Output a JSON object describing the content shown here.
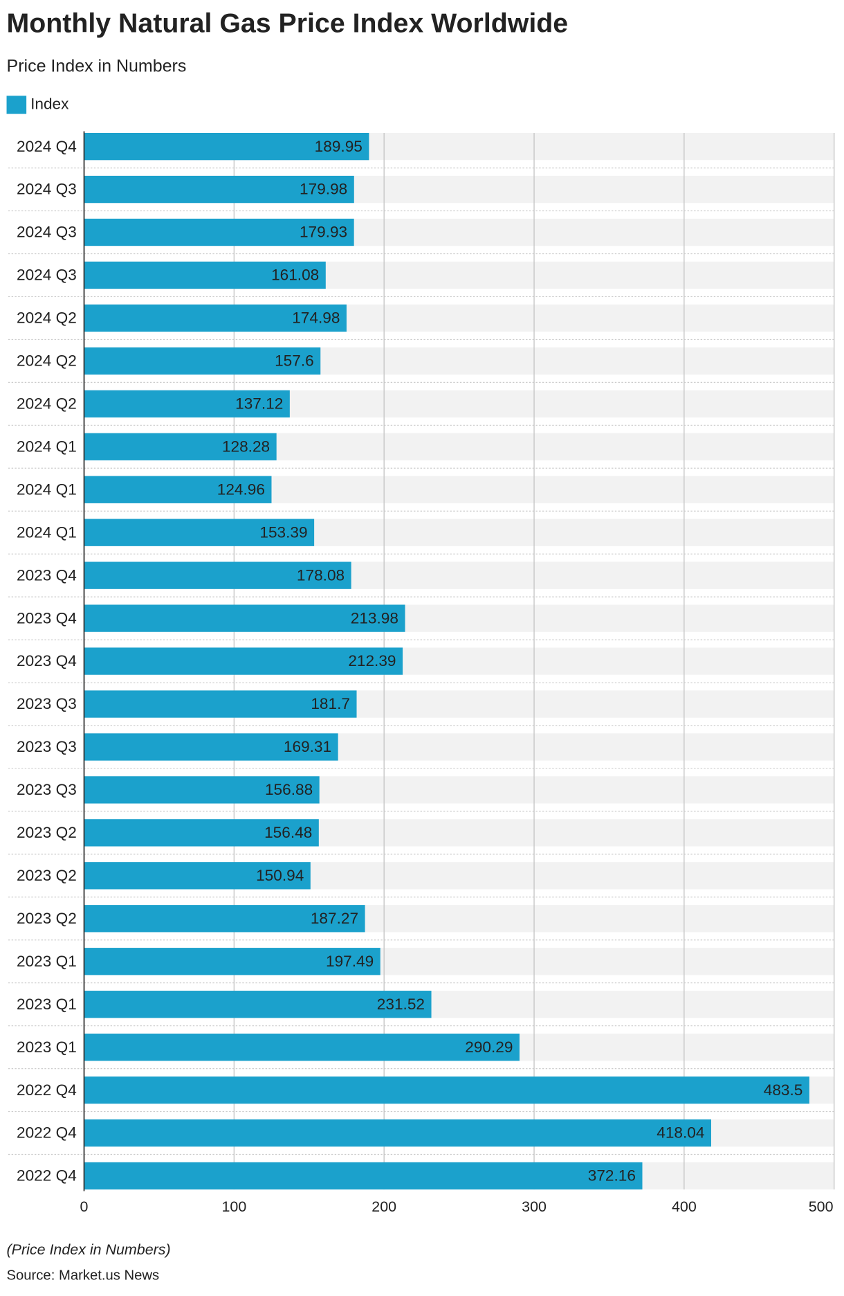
{
  "chart_data": {
    "type": "hbar",
    "title": "Monthly Natural Gas Price Index Worldwide",
    "subtitle": "Price Index in Numbers",
    "categories": [
      "2024 Q4",
      "2024 Q3",
      "2024 Q3",
      "2024 Q3",
      "2024 Q2",
      "2024 Q2",
      "2024 Q2",
      "2024 Q1",
      "2024 Q1",
      "2024 Q1",
      "2023 Q4",
      "2023 Q4",
      "2023 Q4",
      "2023 Q3",
      "2023 Q3",
      "2023 Q3",
      "2023 Q2",
      "2023 Q2",
      "2023 Q2",
      "2023 Q1",
      "2023 Q1",
      "2023 Q1",
      "2022 Q4",
      "2022 Q4",
      "2022 Q4"
    ],
    "series": [
      {
        "name": "Index",
        "color": "#1ba1cc",
        "values": [
          189.95,
          179.98,
          179.93,
          161.08,
          174.98,
          157.6,
          137.12,
          128.28,
          124.96,
          153.39,
          178.08,
          213.98,
          212.39,
          181.7,
          169.31,
          156.88,
          156.48,
          150.94,
          187.27,
          197.49,
          231.52,
          290.29,
          483.5,
          418.04,
          372.16
        ]
      }
    ],
    "xlim": [
      0,
      500
    ],
    "xticks": [
      0,
      100,
      200,
      300,
      400,
      500
    ],
    "grid": true,
    "footnote": "(Price Index in Numbers)",
    "source": "Source: Market.us News"
  }
}
